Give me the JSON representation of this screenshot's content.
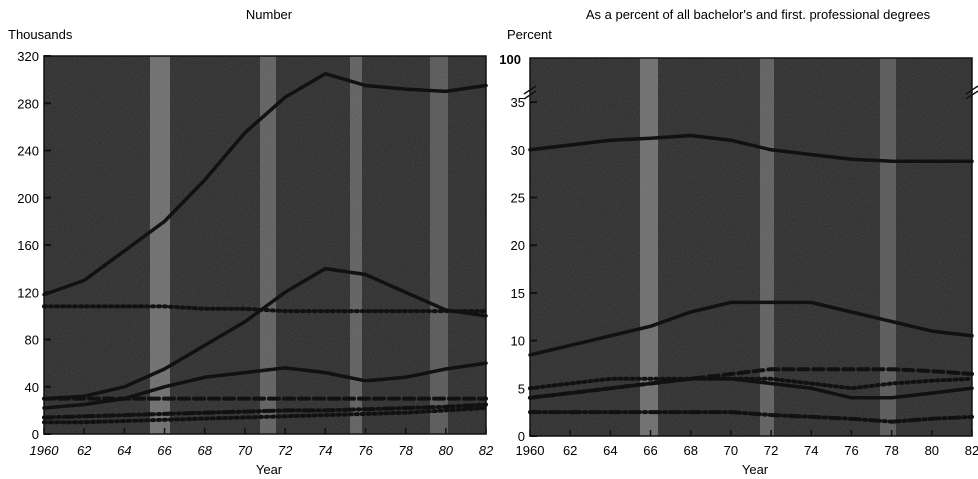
{
  "chart_data": [
    {
      "type": "line",
      "title": "Number",
      "ylabel": "Thousands",
      "xlabel": "Year",
      "ylim": [
        0,
        320
      ],
      "xlim": [
        1960,
        1982
      ],
      "grid": false,
      "x_ticks": [
        {
          "value": 1960,
          "label": "1960"
        },
        {
          "value": 1962,
          "label": "62"
        },
        {
          "value": 1964,
          "label": "64"
        },
        {
          "value": 1966,
          "label": "66"
        },
        {
          "value": 1968,
          "label": "68"
        },
        {
          "value": 1970,
          "label": "70"
        },
        {
          "value": 1972,
          "label": "72"
        },
        {
          "value": 1974,
          "label": "74"
        },
        {
          "value": 1976,
          "label": "76"
        },
        {
          "value": 1978,
          "label": "78"
        },
        {
          "value": 1980,
          "label": "80"
        },
        {
          "value": 1982,
          "label": "82"
        }
      ],
      "y_ticks": [
        {
          "value": 0,
          "label": "0"
        },
        {
          "value": 40,
          "label": "40"
        },
        {
          "value": 80,
          "label": "80"
        },
        {
          "value": 120,
          "label": "120"
        },
        {
          "value": 160,
          "label": "160"
        },
        {
          "value": 200,
          "label": "200"
        },
        {
          "value": 240,
          "label": "240"
        },
        {
          "value": 280,
          "label": "280"
        },
        {
          "value": 320,
          "label": "320"
        }
      ],
      "series": [
        {
          "style": "solid",
          "color": "#111111",
          "x": [
            1960,
            1962,
            1964,
            1966,
            1968,
            1970,
            1972,
            1974,
            1976,
            1978,
            1980,
            1982
          ],
          "values": [
            118,
            130,
            155,
            180,
            215,
            255,
            285,
            305,
            295,
            292,
            290,
            295
          ]
        },
        {
          "style": "solid",
          "color": "#111111",
          "x": [
            1960,
            1962,
            1964,
            1966,
            1968,
            1970,
            1972,
            1974,
            1976,
            1978,
            1980,
            1982
          ],
          "values": [
            30,
            32,
            40,
            55,
            75,
            95,
            120,
            140,
            135,
            120,
            105,
            100
          ]
        },
        {
          "style": "solid",
          "color": "#111111",
          "x": [
            1960,
            1962,
            1964,
            1966,
            1968,
            1970,
            1972,
            1974,
            1976,
            1978,
            1980,
            1982
          ],
          "values": [
            22,
            25,
            30,
            40,
            48,
            52,
            56,
            52,
            45,
            48,
            55,
            60
          ]
        },
        {
          "style": "dotted",
          "color": "#111111",
          "x": [
            1960,
            1962,
            1964,
            1966,
            1968,
            1970,
            1972,
            1974,
            1976,
            1978,
            1980,
            1982
          ],
          "values": [
            108,
            108,
            108,
            108,
            106,
            106,
            104,
            104,
            104,
            104,
            104,
            104
          ]
        },
        {
          "style": "dashed",
          "color": "#111111",
          "x": [
            1960,
            1962,
            1964,
            1966,
            1968,
            1970,
            1972,
            1974,
            1976,
            1978,
            1980,
            1982
          ],
          "values": [
            30,
            30,
            30,
            30,
            30,
            30,
            30,
            30,
            30,
            30,
            30,
            30
          ]
        },
        {
          "style": "dash-dot",
          "color": "#111111",
          "x": [
            1960,
            1962,
            1964,
            1966,
            1968,
            1970,
            1972,
            1974,
            1976,
            1978,
            1980,
            1982
          ],
          "values": [
            14,
            15,
            16,
            17,
            18,
            19,
            20,
            20,
            21,
            22,
            23,
            25
          ]
        },
        {
          "style": "dotted",
          "color": "#111111",
          "x": [
            1960,
            1962,
            1964,
            1966,
            1968,
            1970,
            1972,
            1974,
            1976,
            1978,
            1980,
            1982
          ],
          "values": [
            10,
            10,
            11,
            12,
            13,
            14,
            15,
            16,
            17,
            18,
            20,
            22
          ]
        }
      ]
    },
    {
      "type": "line",
      "title": "As a percent of all bachelor's and first. professional degrees",
      "ylabel": "Percent",
      "xlabel": "Year",
      "ylim": [
        0,
        37
      ],
      "axis_break_label": "100",
      "xlim": [
        1960,
        1982
      ],
      "grid": false,
      "x_ticks": [
        {
          "value": 1960,
          "label": "1960"
        },
        {
          "value": 1962,
          "label": "62"
        },
        {
          "value": 1964,
          "label": "64"
        },
        {
          "value": 1966,
          "label": "66"
        },
        {
          "value": 1968,
          "label": "68"
        },
        {
          "value": 1970,
          "label": "70"
        },
        {
          "value": 1972,
          "label": "72"
        },
        {
          "value": 1974,
          "label": "74"
        },
        {
          "value": 1976,
          "label": "76"
        },
        {
          "value": 1978,
          "label": "78"
        },
        {
          "value": 1980,
          "label": "80"
        },
        {
          "value": 1982,
          "label": "82"
        }
      ],
      "y_ticks": [
        {
          "value": 0,
          "label": "0"
        },
        {
          "value": 5,
          "label": "5"
        },
        {
          "value": 10,
          "label": "10"
        },
        {
          "value": 15,
          "label": "15"
        },
        {
          "value": 20,
          "label": "20"
        },
        {
          "value": 25,
          "label": "25"
        },
        {
          "value": 30,
          "label": "30"
        },
        {
          "value": 35,
          "label": "35"
        }
      ],
      "series": [
        {
          "style": "solid",
          "color": "#111111",
          "x": [
            1960,
            1962,
            1964,
            1966,
            1968,
            1970,
            1972,
            1974,
            1976,
            1978,
            1980,
            1982
          ],
          "values": [
            30,
            30.5,
            31,
            31.2,
            31.5,
            31,
            30,
            29.5,
            29,
            28.8,
            28.8,
            28.8
          ]
        },
        {
          "style": "solid",
          "color": "#111111",
          "x": [
            1960,
            1962,
            1964,
            1966,
            1968,
            1970,
            1972,
            1974,
            1976,
            1978,
            1980,
            1982
          ],
          "values": [
            8.5,
            9.5,
            10.5,
            11.5,
            13,
            14,
            14,
            14,
            13,
            12,
            11,
            10.5
          ]
        },
        {
          "style": "dotted",
          "color": "#111111",
          "x": [
            1960,
            1962,
            1964,
            1966,
            1968,
            1970,
            1972,
            1974,
            1976,
            1978,
            1980,
            1982
          ],
          "values": [
            5,
            5.5,
            6,
            6,
            6,
            6,
            6,
            5.5,
            5,
            5.5,
            5.8,
            6
          ]
        },
        {
          "style": "dashed",
          "color": "#111111",
          "x": [
            1960,
            1962,
            1964,
            1966,
            1968,
            1970,
            1972,
            1974,
            1976,
            1978,
            1980,
            1982
          ],
          "values": [
            4,
            4.5,
            5,
            5.5,
            6,
            6.5,
            7,
            7,
            7,
            7,
            6.8,
            6.5
          ]
        },
        {
          "style": "dash-dot",
          "color": "#111111",
          "x": [
            1960,
            1962,
            1964,
            1966,
            1968,
            1970,
            1972,
            1974,
            1976,
            1978,
            1980,
            1982
          ],
          "values": [
            2.5,
            2.5,
            2.5,
            2.5,
            2.5,
            2.5,
            2.2,
            2,
            1.8,
            1.5,
            1.8,
            2
          ]
        },
        {
          "style": "solid",
          "color": "#111111",
          "x": [
            1960,
            1962,
            1964,
            1966,
            1968,
            1970,
            1972,
            1974,
            1976,
            1978,
            1980,
            1982
          ],
          "values": [
            4,
            4.5,
            5,
            5.5,
            6,
            6,
            5.5,
            5,
            4,
            4,
            4.5,
            5
          ]
        }
      ]
    }
  ]
}
